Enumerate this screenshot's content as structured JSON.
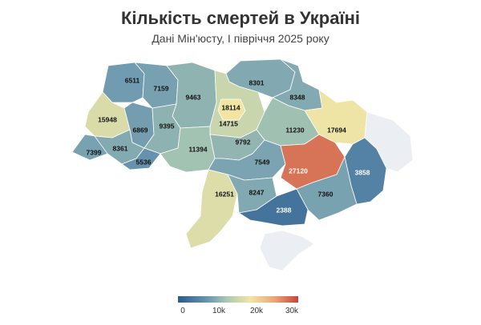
{
  "header": {
    "title": "Кількість смертей в Україні",
    "subtitle": "Дані Мін'юсту, І півріччя 2025 року"
  },
  "chart_data": {
    "type": "choropleth",
    "title": "Кількість смертей в Україні",
    "subtitle": "Дані Мін'юсту, І півріччя 2025 року",
    "color_scale": {
      "min": 0,
      "max": 30000,
      "colors": [
        "#2b5b8f",
        "#6b97b0",
        "#a8c7b2",
        "#f2e6a4",
        "#e8a877",
        "#c8443c"
      ]
    },
    "no_data_color": "#ebeef2",
    "regions": [
      {
        "id": "volyn",
        "value": 6511
      },
      {
        "id": "rivne",
        "value": 7159
      },
      {
        "id": "zhytomyr",
        "value": 9463
      },
      {
        "id": "kyiv-oblast",
        "value": 14715
      },
      {
        "id": "kyiv-city",
        "value": 18114
      },
      {
        "id": "chernihiv",
        "value": 8301
      },
      {
        "id": "sumy",
        "value": 8348
      },
      {
        "id": "lviv",
        "value": 15948
      },
      {
        "id": "ternopil",
        "value": 6869
      },
      {
        "id": "khmelnytskyi",
        "value": 9395
      },
      {
        "id": "poltava",
        "value": 11230
      },
      {
        "id": "kharkiv",
        "value": 17694
      },
      {
        "id": "zakarpattia",
        "value": 7399
      },
      {
        "id": "ivano-frankivsk",
        "value": 8361
      },
      {
        "id": "chernivtsi",
        "value": 5536
      },
      {
        "id": "vinnytsia",
        "value": 11394
      },
      {
        "id": "cherkasy",
        "value": 9792
      },
      {
        "id": "kirovohrad",
        "value": 7549
      },
      {
        "id": "dnipropetrovsk",
        "value": 27120
      },
      {
        "id": "donetsk",
        "value": 3858
      },
      {
        "id": "odesa",
        "value": 16251
      },
      {
        "id": "mykolaiv",
        "value": 8247
      },
      {
        "id": "zaporizhzhia",
        "value": 7360
      },
      {
        "id": "kherson",
        "value": 2388
      },
      {
        "id": "luhansk",
        "value": null
      },
      {
        "id": "crimea",
        "value": null
      }
    ],
    "legend": {
      "ticks": [
        "0",
        "10k",
        "20k",
        "30k"
      ]
    }
  }
}
